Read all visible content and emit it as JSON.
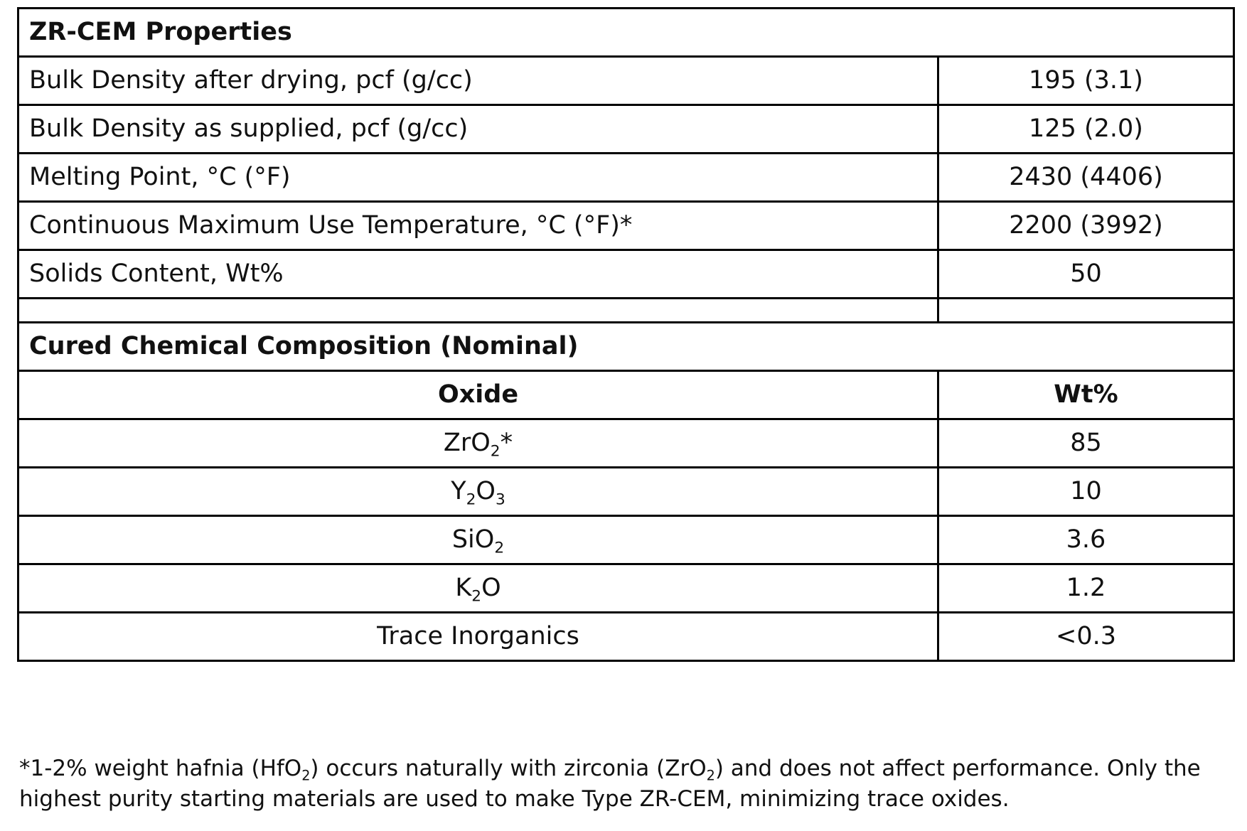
{
  "properties": {
    "title": "ZR-CEM Properties",
    "rows": [
      {
        "label": "Bulk Density after drying, pcf (g/cc)",
        "value": "195 (3.1)"
      },
      {
        "label": "Bulk Density as supplied, pcf (g/cc)",
        "value": "125 (2.0)"
      },
      {
        "label": "Melting Point, °C (°F)",
        "value": "2430 (4406)"
      },
      {
        "label": "Continuous Maximum Use Temperature, °C (°F)*",
        "value": "2200 (3992)"
      },
      {
        "label": "Solids Content, Wt%",
        "value": "50"
      }
    ]
  },
  "composition": {
    "title": "Cured Chemical Composition (Nominal)",
    "headers": {
      "oxide": "Oxide",
      "wt": "Wt%"
    },
    "rows": [
      {
        "oxide": {
          "p1": "ZrO",
          "s1": "2",
          "p2": "*"
        },
        "wt": "85"
      },
      {
        "oxide": {
          "p1": "Y",
          "s1": "2",
          "p2": "O",
          "s2": "3"
        },
        "wt": "10"
      },
      {
        "oxide": {
          "p1": "SiO",
          "s1": "2"
        },
        "wt": "3.6"
      },
      {
        "oxide": {
          "p1": "K",
          "s1": "2",
          "p2": "O"
        },
        "wt": "1.2"
      },
      {
        "oxide": {
          "p1": "Trace Inorganics"
        },
        "wt": "<0.3"
      }
    ]
  },
  "footnote": {
    "t1": "*1-2% weight hafnia (HfO",
    "s1": "2",
    "t2": ") occurs naturally with zirconia (ZrO",
    "s2": "2",
    "t3": ") and does not affect performance. Only the highest purity starting materials are used to make Type ZR-CEM, minimizing trace oxides."
  }
}
